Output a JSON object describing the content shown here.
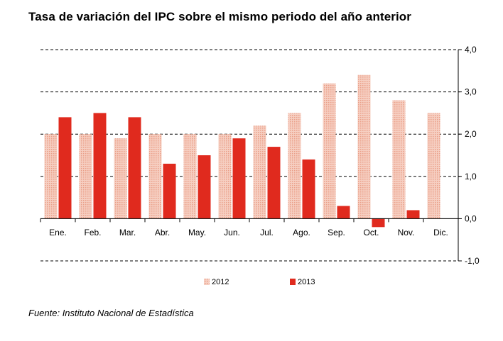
{
  "chart_data": {
    "type": "bar",
    "title": "Tasa de variación del IPC sobre el mismo periodo del año anterior",
    "categories": [
      "Ene.",
      "Feb.",
      "Mar.",
      "Abr.",
      "May.",
      "Jun.",
      "Jul.",
      "Ago.",
      "Sep.",
      "Oct.",
      "Nov.",
      "Dic."
    ],
    "series": [
      {
        "name": "2012",
        "color": "#f2b8a6",
        "pattern": "dotted",
        "values": [
          2.0,
          2.0,
          1.9,
          2.0,
          2.0,
          2.0,
          2.2,
          2.5,
          3.2,
          3.4,
          2.8,
          2.5
        ]
      },
      {
        "name": "2013",
        "color": "#e02a1e",
        "pattern": "solid",
        "values": [
          2.4,
          2.5,
          2.4,
          1.3,
          1.5,
          1.9,
          1.7,
          1.4,
          0.3,
          -0.2,
          0.2,
          null
        ]
      }
    ],
    "ylim": [
      -1.0,
      4.0
    ],
    "yticks": [
      "-1,0",
      "0,0",
      "1,0",
      "2,0",
      "3,0",
      "4,0"
    ],
    "ytick_values": [
      -1,
      0,
      1,
      2,
      3,
      4
    ],
    "grid": "dashed horizontal",
    "legend_position": "bottom",
    "source": "Fuente: Instituto Nacional de Estadística"
  }
}
